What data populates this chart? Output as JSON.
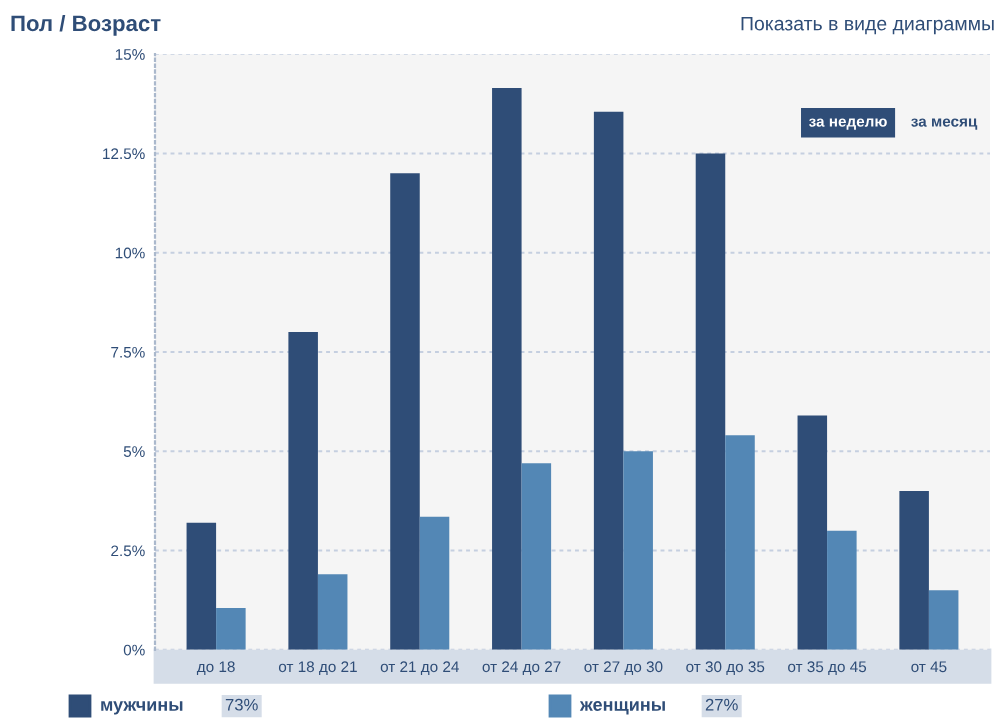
{
  "chart_data": {
    "type": "bar",
    "title": "Пол / Возраст",
    "categories": [
      "до 18",
      "от 18 до 21",
      "от 21 до 24",
      "от 24 до 27",
      "от 27 до 30",
      "от 30 до 35",
      "от 35 до 45",
      "от 45"
    ],
    "series": [
      {
        "name": "мужчины",
        "color": "#2f4d77",
        "values": [
          3.2,
          8.0,
          12.0,
          14.15,
          13.55,
          12.5,
          5.9,
          4.0
        ]
      },
      {
        "name": "женщины",
        "color": "#5387b5",
        "values": [
          1.05,
          1.9,
          3.35,
          4.7,
          5.0,
          5.4,
          3.0,
          1.5
        ]
      }
    ],
    "ylim": [
      0,
      15
    ],
    "yticks": [
      {
        "value": 0,
        "label": "0%"
      },
      {
        "value": 2.5,
        "label": "2.5%"
      },
      {
        "value": 5,
        "label": "5%"
      },
      {
        "value": 7.5,
        "label": "7.5%"
      },
      {
        "value": 10,
        "label": "10%"
      },
      {
        "value": 12.5,
        "label": "12.5%"
      },
      {
        "value": 15,
        "label": "15%"
      }
    ],
    "grid": "y",
    "legend": "bottom",
    "annotations": [
      "Показать в виде диаграммы",
      "за неделю",
      "за месяц",
      "73%",
      "27%"
    ]
  }
}
